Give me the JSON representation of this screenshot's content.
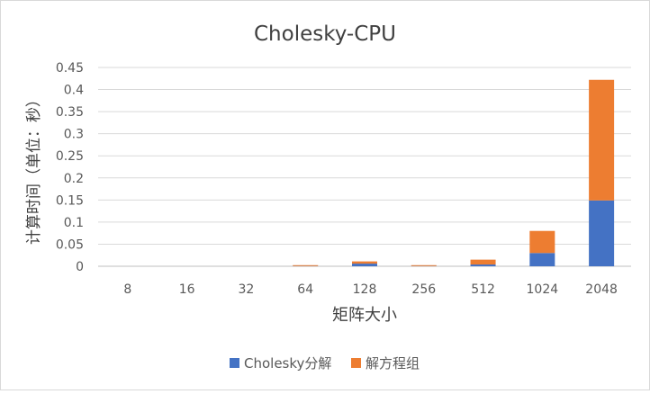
{
  "chart_data": {
    "type": "bar",
    "stacked": true,
    "title": "Cholesky-CPU",
    "xlabel": "矩阵大小",
    "ylabel": "计算时间（单位：秒）",
    "categories": [
      "8",
      "16",
      "32",
      "64",
      "128",
      "256",
      "512",
      "1024",
      "2048"
    ],
    "ylim": [
      0,
      0.45
    ],
    "yticks": [
      "0",
      "0.05",
      "0.1",
      "0.15",
      "0.2",
      "0.25",
      "0.3",
      "0.35",
      "0.4",
      "0.45"
    ],
    "grid": true,
    "legend_position": "bottom",
    "series": [
      {
        "name": "Cholesky分解",
        "color": "#4472c4",
        "values": [
          0,
          0,
          0,
          0.0005,
          0.006,
          0.0005,
          0.004,
          0.03,
          0.149
        ]
      },
      {
        "name": "解方程组",
        "color": "#ed7d31",
        "values": [
          0,
          0,
          0,
          0.002,
          0.005,
          0.002,
          0.011,
          0.05,
          0.273
        ]
      }
    ]
  }
}
